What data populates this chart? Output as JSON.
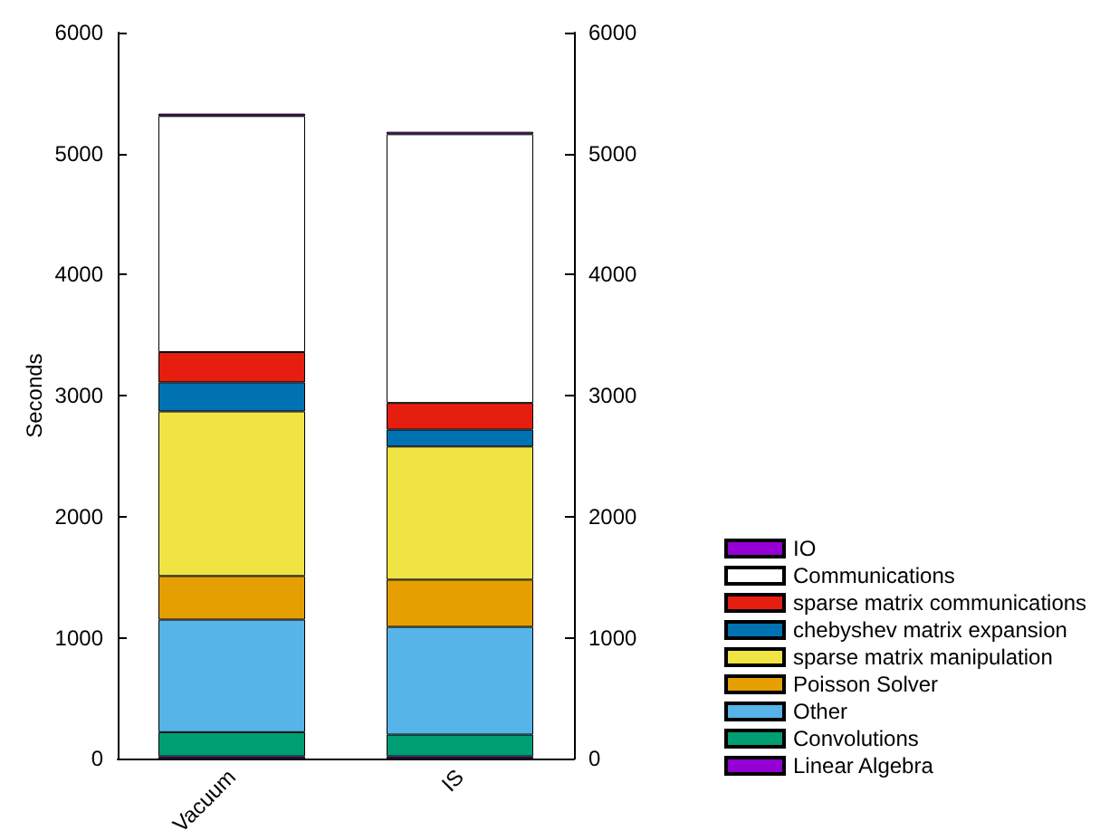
{
  "chart_data": {
    "type": "bar",
    "stacked": true,
    "ylabel": "Seconds",
    "categories": [
      "Vacuum",
      "IS"
    ],
    "ylim": [
      0,
      6000
    ],
    "yticks": [
      0,
      1000,
      2000,
      3000,
      4000,
      5000,
      6000
    ],
    "y2lim": [
      0,
      6000
    ],
    "y2ticks": [
      0,
      1000,
      2000,
      3000,
      4000,
      5000,
      6000
    ],
    "grid": false,
    "legend": "bottom right",
    "series": [
      {
        "name": "Linear Algebra",
        "color": "#9400d3",
        "values": [
          20,
          20
        ]
      },
      {
        "name": "Convolutions",
        "color": "#009e73",
        "values": [
          200,
          180
        ]
      },
      {
        "name": "Other",
        "color": "#56b4e9",
        "values": [
          930,
          890
        ]
      },
      {
        "name": "Poisson Solver",
        "color": "#e69f00",
        "values": [
          360,
          390
        ]
      },
      {
        "name": "sparse matrix manipulation",
        "color": "#f0e442",
        "values": [
          1360,
          1100
        ]
      },
      {
        "name": "chebyshev matrix expansion",
        "color": "#0072b2",
        "values": [
          240,
          140
        ]
      },
      {
        "name": "sparse matrix communications",
        "color": "#e51e10",
        "values": [
          250,
          220
        ]
      },
      {
        "name": "Communications",
        "color": "#ffffff",
        "values": [
          1950,
          2220
        ]
      },
      {
        "name": "IO",
        "color": "#9400d3",
        "values": [
          20,
          20
        ]
      }
    ]
  }
}
